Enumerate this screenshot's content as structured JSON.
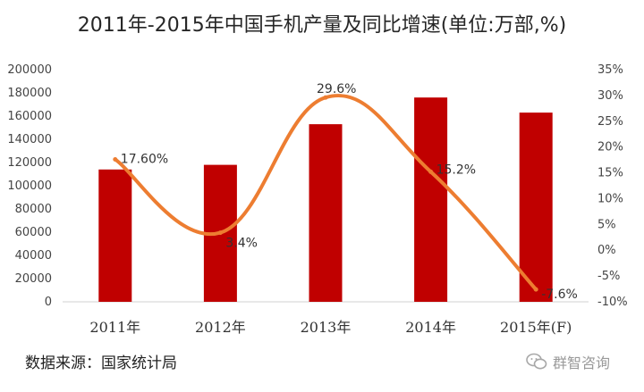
{
  "title": "2011年-2015年中国手机产量及同比增速(单位:万部,%)",
  "source": "数据来源：国家统计局",
  "watermark": "群智咨询",
  "colors": {
    "bar": "#c00000",
    "line": "#ed7d31",
    "axis": "#d9d9d9"
  },
  "chart_data": {
    "type": "bar",
    "title": "2011年-2015年中国手机产量及同比增速(单位:万部,%)",
    "categories": [
      "2011年",
      "2012年",
      "2013年",
      "2014年",
      "2015年(F)"
    ],
    "series": [
      {
        "type": "bar",
        "axis": "left",
        "values": [
          114000,
          118000,
          153000,
          176000,
          163000
        ]
      },
      {
        "type": "line",
        "axis": "right",
        "values": [
          17.6,
          3.4,
          29.6,
          15.2,
          -7.6
        ],
        "labels": [
          "17.60%",
          "3.4%",
          "29.6%",
          "15.2%",
          "-7.6%"
        ]
      }
    ],
    "ylim_left": [
      0,
      200000
    ],
    "yticks_left": [
      "200000",
      "180000",
      "160000",
      "140000",
      "120000",
      "100000",
      "80000",
      "60000",
      "40000",
      "20000",
      "0"
    ],
    "ylim_right": [
      -10,
      35
    ],
    "yticks_right": [
      "35%",
      "30%",
      "25%",
      "20%",
      "15%",
      "10%",
      "5%",
      "0%",
      "-5%",
      "-10%"
    ],
    "grid": false,
    "legend": "none"
  }
}
